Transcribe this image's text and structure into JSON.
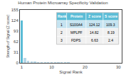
{
  "chart_data": {
    "type": "bar",
    "title": "Human Protein Microarray Specificity Validation",
    "xlabel": "Signal Rank",
    "ylabel": "Strength of Signal (Z score)",
    "x": [
      1,
      2,
      3,
      4,
      5,
      6,
      7,
      8,
      9,
      10,
      11,
      12,
      13,
      14,
      15,
      16,
      17,
      18,
      19,
      20,
      21,
      22,
      23,
      24,
      25,
      26,
      27,
      28,
      29,
      30
    ],
    "values": [
      124.12,
      14.82,
      6.63,
      4.5,
      3.2,
      2.8,
      2.4,
      2.1,
      1.9,
      1.7,
      1.5,
      1.4,
      1.3,
      1.2,
      1.1,
      1.0,
      0.95,
      0.9,
      0.85,
      0.8,
      0.75,
      0.7,
      0.65,
      0.6,
      0.55,
      0.5,
      0.45,
      0.4,
      0.35,
      0.3
    ],
    "colors": [
      "#5bbcd6",
      "#b8d8e8",
      "#b8d8e8",
      "#b8d8e8",
      "#b8d8e8",
      "#b8d8e8",
      "#b8d8e8",
      "#b8d8e8",
      "#b8d8e8",
      "#b8d8e8",
      "#b8d8e8",
      "#b8d8e8",
      "#b8d8e8",
      "#b8d8e8",
      "#b8d8e8",
      "#b8d8e8",
      "#b8d8e8",
      "#b8d8e8",
      "#b8d8e8",
      "#b8d8e8",
      "#b8d8e8",
      "#b8d8e8",
      "#b8d8e8",
      "#b8d8e8",
      "#b8d8e8",
      "#b8d8e8",
      "#b8d8e8",
      "#b8d8e8",
      "#b8d8e8",
      "#b8d8e8"
    ],
    "xlim": [
      0.5,
      31
    ],
    "xticks": [
      1,
      10,
      20,
      30
    ],
    "ylim": [
      0,
      155
    ],
    "yticks": [
      0,
      31,
      62,
      93,
      124,
      155
    ],
    "grid": false,
    "table": {
      "headers": [
        "Rank",
        "Protein",
        "Z score",
        "S score"
      ],
      "rows": [
        [
          "1",
          "S100A4",
          "124.12",
          "109.3"
        ],
        [
          "2",
          "MPLPF",
          "14.82",
          "8.19"
        ],
        [
          "3",
          "FDPS",
          "6.63",
          "2.4"
        ]
      ],
      "header_color": "#5bbcd6",
      "row_colors": [
        "#c5e3f0",
        "#f0f0f0",
        "#f0f0f0"
      ]
    }
  }
}
